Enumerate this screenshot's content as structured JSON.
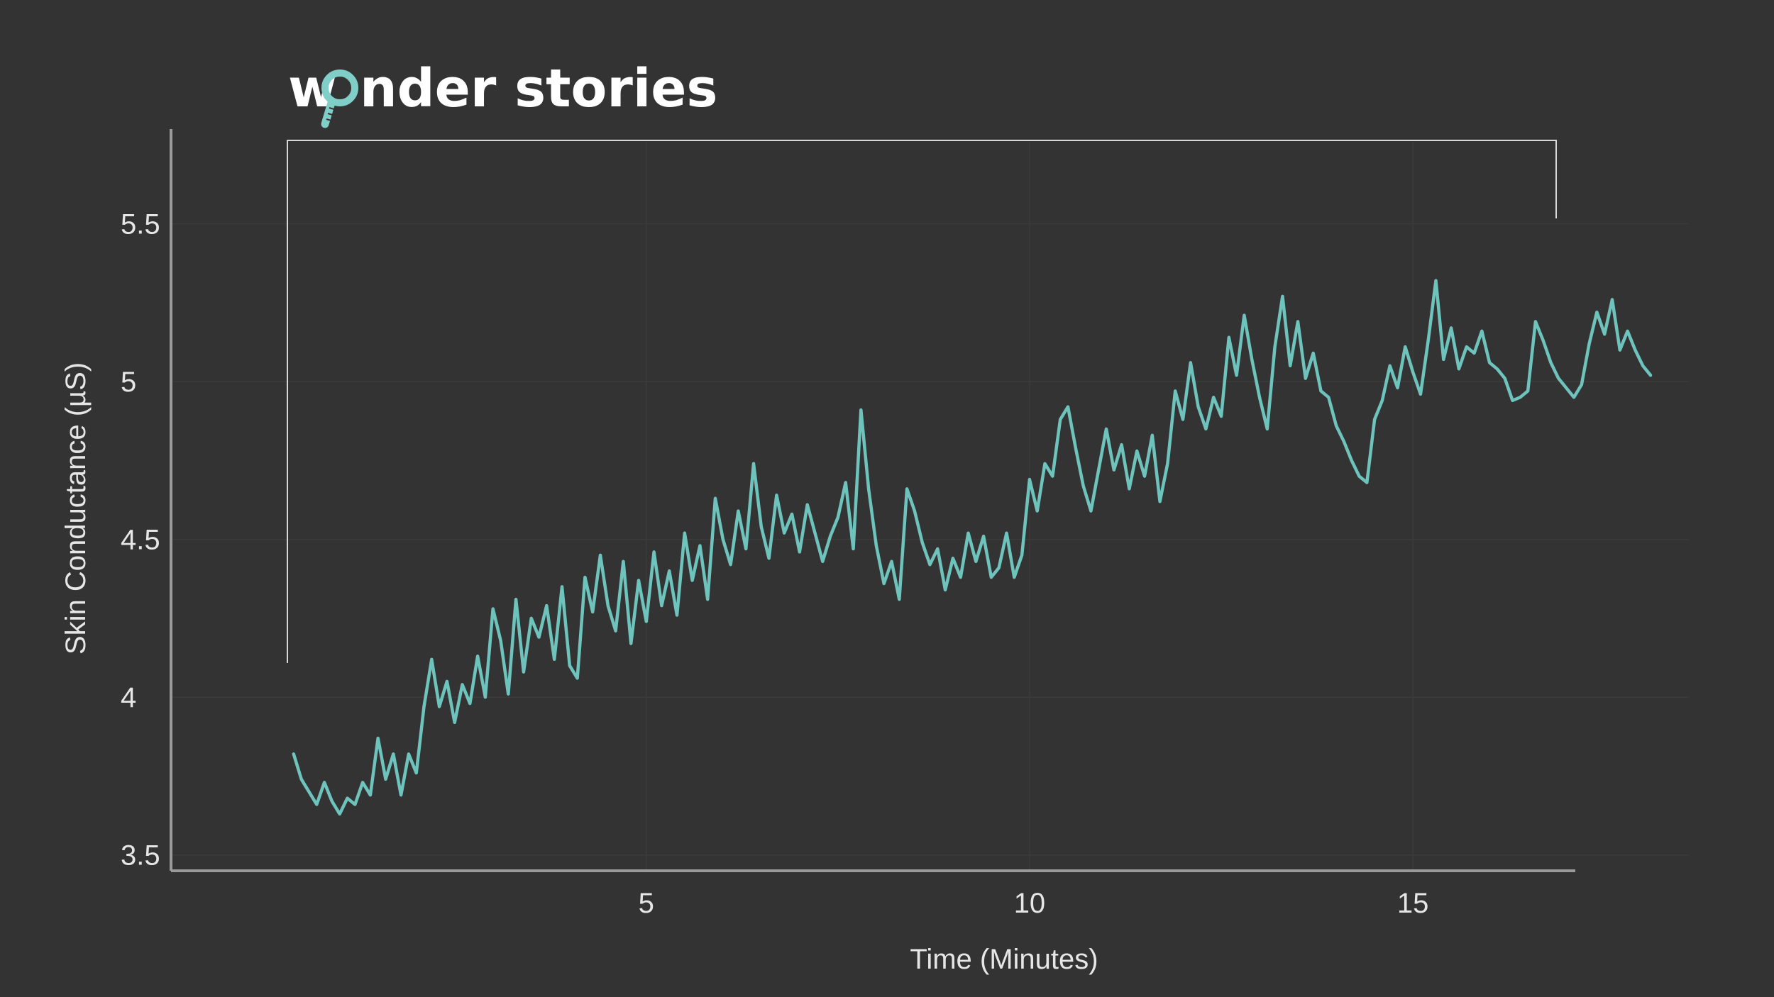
{
  "logo": {
    "text_pre": "w",
    "text_post": "nder stories",
    "accent_color": "#7fcec8",
    "icon": "magnifying-glass-icon"
  },
  "colors": {
    "background": "#333333",
    "line": "#6ec4bd",
    "axis": "#9a9a9a",
    "grid": "#3b3b3b",
    "bracket": "#d8d8d8",
    "text": "#e6e6e6"
  },
  "chart_data": {
    "type": "line",
    "xlabel": "Time (Minutes)",
    "ylabel": "Skin Conductance (µS)",
    "xlim": [
      -1.2,
      18.6
    ],
    "ylim": [
      3.45,
      5.8
    ],
    "xticks": [
      5,
      10,
      15
    ],
    "yticks": [
      3.5,
      4,
      4.5,
      5,
      5.5
    ],
    "grid": true,
    "series": [
      {
        "points": [
          [
            0.4,
            3.82
          ],
          [
            0.5,
            3.74
          ],
          [
            0.6,
            3.7
          ],
          [
            0.7,
            3.66
          ],
          [
            0.8,
            3.73
          ],
          [
            0.9,
            3.67
          ],
          [
            1.0,
            3.63
          ],
          [
            1.1,
            3.68
          ],
          [
            1.2,
            3.66
          ],
          [
            1.3,
            3.73
          ],
          [
            1.4,
            3.69
          ],
          [
            1.5,
            3.87
          ],
          [
            1.6,
            3.74
          ],
          [
            1.7,
            3.82
          ],
          [
            1.8,
            3.69
          ],
          [
            1.9,
            3.82
          ],
          [
            2.0,
            3.76
          ],
          [
            2.1,
            3.97
          ],
          [
            2.2,
            4.12
          ],
          [
            2.3,
            3.97
          ],
          [
            2.4,
            4.05
          ],
          [
            2.5,
            3.92
          ],
          [
            2.6,
            4.04
          ],
          [
            2.7,
            3.98
          ],
          [
            2.8,
            4.13
          ],
          [
            2.9,
            4.0
          ],
          [
            3.0,
            4.28
          ],
          [
            3.1,
            4.18
          ],
          [
            3.2,
            4.01
          ],
          [
            3.3,
            4.31
          ],
          [
            3.4,
            4.08
          ],
          [
            3.5,
            4.25
          ],
          [
            3.6,
            4.19
          ],
          [
            3.7,
            4.29
          ],
          [
            3.8,
            4.12
          ],
          [
            3.9,
            4.35
          ],
          [
            4.0,
            4.1
          ],
          [
            4.1,
            4.06
          ],
          [
            4.2,
            4.38
          ],
          [
            4.3,
            4.27
          ],
          [
            4.4,
            4.45
          ],
          [
            4.5,
            4.29
          ],
          [
            4.6,
            4.21
          ],
          [
            4.7,
            4.43
          ],
          [
            4.8,
            4.17
          ],
          [
            4.9,
            4.37
          ],
          [
            5.0,
            4.24
          ],
          [
            5.1,
            4.46
          ],
          [
            5.2,
            4.29
          ],
          [
            5.3,
            4.4
          ],
          [
            5.4,
            4.26
          ],
          [
            5.5,
            4.52
          ],
          [
            5.6,
            4.37
          ],
          [
            5.7,
            4.48
          ],
          [
            5.8,
            4.31
          ],
          [
            5.9,
            4.63
          ],
          [
            6.0,
            4.5
          ],
          [
            6.1,
            4.42
          ],
          [
            6.2,
            4.59
          ],
          [
            6.3,
            4.47
          ],
          [
            6.4,
            4.74
          ],
          [
            6.5,
            4.54
          ],
          [
            6.6,
            4.44
          ],
          [
            6.7,
            4.64
          ],
          [
            6.8,
            4.52
          ],
          [
            6.9,
            4.58
          ],
          [
            7.0,
            4.46
          ],
          [
            7.1,
            4.61
          ],
          [
            7.2,
            4.52
          ],
          [
            7.3,
            4.43
          ],
          [
            7.4,
            4.51
          ],
          [
            7.5,
            4.57
          ],
          [
            7.6,
            4.68
          ],
          [
            7.7,
            4.47
          ],
          [
            7.8,
            4.91
          ],
          [
            7.9,
            4.66
          ],
          [
            8.0,
            4.48
          ],
          [
            8.1,
            4.36
          ],
          [
            8.2,
            4.43
          ],
          [
            8.3,
            4.31
          ],
          [
            8.4,
            4.66
          ],
          [
            8.5,
            4.59
          ],
          [
            8.6,
            4.49
          ],
          [
            8.7,
            4.42
          ],
          [
            8.8,
            4.47
          ],
          [
            8.9,
            4.34
          ],
          [
            9.0,
            4.44
          ],
          [
            9.1,
            4.38
          ],
          [
            9.2,
            4.52
          ],
          [
            9.3,
            4.43
          ],
          [
            9.4,
            4.51
          ],
          [
            9.5,
            4.38
          ],
          [
            9.6,
            4.41
          ],
          [
            9.7,
            4.52
          ],
          [
            9.8,
            4.38
          ],
          [
            9.9,
            4.45
          ],
          [
            10.0,
            4.69
          ],
          [
            10.1,
            4.59
          ],
          [
            10.2,
            4.74
          ],
          [
            10.3,
            4.7
          ],
          [
            10.4,
            4.88
          ],
          [
            10.5,
            4.92
          ],
          [
            10.6,
            4.79
          ],
          [
            10.7,
            4.67
          ],
          [
            10.8,
            4.59
          ],
          [
            10.9,
            4.72
          ],
          [
            11.0,
            4.85
          ],
          [
            11.1,
            4.72
          ],
          [
            11.2,
            4.8
          ],
          [
            11.3,
            4.66
          ],
          [
            11.4,
            4.78
          ],
          [
            11.5,
            4.7
          ],
          [
            11.6,
            4.83
          ],
          [
            11.7,
            4.62
          ],
          [
            11.8,
            4.74
          ],
          [
            11.9,
            4.97
          ],
          [
            12.0,
            4.88
          ],
          [
            12.1,
            5.06
          ],
          [
            12.2,
            4.92
          ],
          [
            12.3,
            4.85
          ],
          [
            12.4,
            4.95
          ],
          [
            12.5,
            4.89
          ],
          [
            12.6,
            5.14
          ],
          [
            12.7,
            5.02
          ],
          [
            12.8,
            5.21
          ],
          [
            12.9,
            5.07
          ],
          [
            13.0,
            4.95
          ],
          [
            13.1,
            4.85
          ],
          [
            13.2,
            5.11
          ],
          [
            13.3,
            5.27
          ],
          [
            13.4,
            5.05
          ],
          [
            13.5,
            5.19
          ],
          [
            13.6,
            5.01
          ],
          [
            13.7,
            5.09
          ],
          [
            13.8,
            4.97
          ],
          [
            13.9,
            4.95
          ],
          [
            14.0,
            4.86
          ],
          [
            14.1,
            4.81
          ],
          [
            14.2,
            4.75
          ],
          [
            14.3,
            4.7
          ],
          [
            14.4,
            4.68
          ],
          [
            14.5,
            4.88
          ],
          [
            14.6,
            4.94
          ],
          [
            14.7,
            5.05
          ],
          [
            14.8,
            4.98
          ],
          [
            14.9,
            5.11
          ],
          [
            15.0,
            5.03
          ],
          [
            15.1,
            4.96
          ],
          [
            15.2,
            5.13
          ],
          [
            15.3,
            5.32
          ],
          [
            15.4,
            5.07
          ],
          [
            15.5,
            5.17
          ],
          [
            15.6,
            5.04
          ],
          [
            15.7,
            5.11
          ],
          [
            15.8,
            5.09
          ],
          [
            15.9,
            5.16
          ],
          [
            16.0,
            5.06
          ],
          [
            16.1,
            5.04
          ],
          [
            16.2,
            5.01
          ],
          [
            16.3,
            4.94
          ],
          [
            16.4,
            4.95
          ],
          [
            16.5,
            4.97
          ],
          [
            16.6,
            5.19
          ],
          [
            16.7,
            5.13
          ],
          [
            16.8,
            5.06
          ],
          [
            16.9,
            5.01
          ],
          [
            17.0,
            4.98
          ],
          [
            17.1,
            4.95
          ],
          [
            17.2,
            4.99
          ],
          [
            17.3,
            5.12
          ],
          [
            17.4,
            5.22
          ],
          [
            17.5,
            5.15
          ],
          [
            17.6,
            5.26
          ],
          [
            17.7,
            5.1
          ],
          [
            17.8,
            5.16
          ],
          [
            17.9,
            5.1
          ],
          [
            18.0,
            5.05
          ],
          [
            18.1,
            5.02
          ]
        ]
      }
    ]
  }
}
